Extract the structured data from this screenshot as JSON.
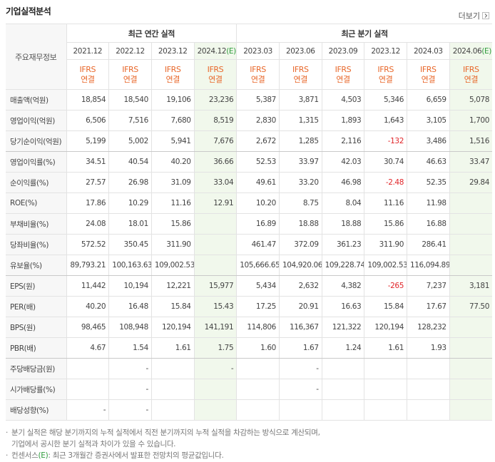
{
  "header": {
    "title": "기업실적분석",
    "more": "더보기"
  },
  "table": {
    "corner": "주요재무정보",
    "groups": [
      {
        "label": "최근 연간 실적",
        "span": 4
      },
      {
        "label": "최근 분기 실적",
        "span": 6
      }
    ],
    "columns": [
      {
        "period": "2021.12",
        "standard": "IFRS",
        "basis": "연결"
      },
      {
        "period": "2022.12",
        "standard": "IFRS",
        "basis": "연결"
      },
      {
        "period": "2023.12",
        "standard": "IFRS",
        "basis": "연결"
      },
      {
        "period": "2024.12",
        "estimate": "(E)",
        "standard": "IFRS",
        "basis": "연결"
      },
      {
        "period": "2023.03",
        "standard": "IFRS",
        "basis": "연결"
      },
      {
        "period": "2023.06",
        "standard": "IFRS",
        "basis": "연결"
      },
      {
        "period": "2023.09",
        "standard": "IFRS",
        "basis": "연결"
      },
      {
        "period": "2023.12",
        "standard": "IFRS",
        "basis": "연결"
      },
      {
        "period": "2024.03",
        "standard": "IFRS",
        "basis": "연결"
      },
      {
        "period": "2024.06",
        "estimate": "(E)",
        "standard": "IFRS",
        "basis": "연결"
      }
    ],
    "sections": [
      {
        "rows": [
          {
            "label": "매출액(억원)",
            "cells": [
              "18,854",
              "18,540",
              "19,106",
              "23,236",
              "5,387",
              "3,871",
              "4,503",
              "5,346",
              "6,659",
              "5,078"
            ]
          },
          {
            "label": "영업이익(억원)",
            "cells": [
              "6,506",
              "7,516",
              "7,680",
              "8,519",
              "2,830",
              "1,315",
              "1,893",
              "1,643",
              "3,105",
              "1,700"
            ]
          },
          {
            "label": "당기순이익(억원)",
            "cells": [
              "5,199",
              "5,002",
              "5,941",
              "7,676",
              "2,672",
              "1,285",
              "2,116",
              "-132",
              "3,486",
              "1,516"
            ]
          }
        ]
      },
      {
        "rows": [
          {
            "label": "영업이익률(%)",
            "cells": [
              "34.51",
              "40.54",
              "40.20",
              "36.66",
              "52.53",
              "33.97",
              "42.03",
              "30.74",
              "46.63",
              "33.47"
            ]
          },
          {
            "label": "순이익률(%)",
            "cells": [
              "27.57",
              "26.98",
              "31.09",
              "33.04",
              "49.61",
              "33.20",
              "46.98",
              "-2.48",
              "52.35",
              "29.84"
            ]
          },
          {
            "label": "ROE(%)",
            "cells": [
              "17.86",
              "10.29",
              "11.16",
              "12.91",
              "10.20",
              "8.75",
              "8.04",
              "11.16",
              "11.98",
              null
            ]
          },
          {
            "label": "부채비율(%)",
            "cells": [
              "24.08",
              "18.01",
              "15.86",
              null,
              "16.89",
              "18.88",
              "18.88",
              "15.86",
              "16.88",
              null
            ]
          },
          {
            "label": "당좌비율(%)",
            "cells": [
              "572.52",
              "350.45",
              "311.90",
              null,
              "461.47",
              "372.09",
              "361.23",
              "311.90",
              "286.41",
              null
            ]
          },
          {
            "label": "유보율(%)",
            "cells": [
              "89,793.21",
              "100,163.63",
              "109,002.53",
              null,
              "105,666.65",
              "104,920.06",
              "109,228.74",
              "109,002.53",
              "116,094.89",
              null
            ]
          }
        ]
      },
      {
        "rows": [
          {
            "label": "EPS(원)",
            "cells": [
              "11,442",
              "10,194",
              "12,221",
              "15,977",
              "5,434",
              "2,632",
              "4,382",
              "-265",
              "7,237",
              "3,181"
            ]
          },
          {
            "label": "PER(배)",
            "cells": [
              "40.20",
              "16.48",
              "15.84",
              "15.43",
              "17.25",
              "20.91",
              "16.63",
              "15.84",
              "17.67",
              "77.50"
            ]
          },
          {
            "label": "BPS(원)",
            "cells": [
              "98,465",
              "108,948",
              "120,194",
              "141,191",
              "114,806",
              "116,367",
              "121,322",
              "120,194",
              "128,232",
              null
            ]
          },
          {
            "label": "PBR(배)",
            "cells": [
              "4.67",
              "1.54",
              "1.61",
              "1.75",
              "1.60",
              "1.67",
              "1.24",
              "1.61",
              "1.93",
              null
            ]
          }
        ]
      },
      {
        "rows": [
          {
            "label": "주당배당금(원)",
            "cells": [
              null,
              "-",
              null,
              "-",
              null,
              "-",
              null,
              null,
              null,
              null
            ]
          },
          {
            "label": "시가배당률(%)",
            "cells": [
              null,
              "-",
              null,
              null,
              null,
              "-",
              null,
              null,
              null,
              null
            ]
          },
          {
            "label": "배당성향(%)",
            "cells": [
              "-",
              "-",
              null,
              null,
              null,
              null,
              null,
              null,
              null,
              null
            ]
          }
        ]
      }
    ]
  },
  "notes": [
    {
      "lines": [
        "분기 실적은 해당 분기까지의 누적 실적에서 직전 분기까지의 누적 실적을 차감하는 방식으로 계산되며,",
        "기업에서 공시한 분기 실적과 차이가 있을 수 있습니다."
      ]
    },
    {
      "parts": [
        "컨센서스",
        "(E)",
        ": 최근 3개월간 증권사에서 발표한 전망치의 평균값입니다."
      ]
    }
  ]
}
